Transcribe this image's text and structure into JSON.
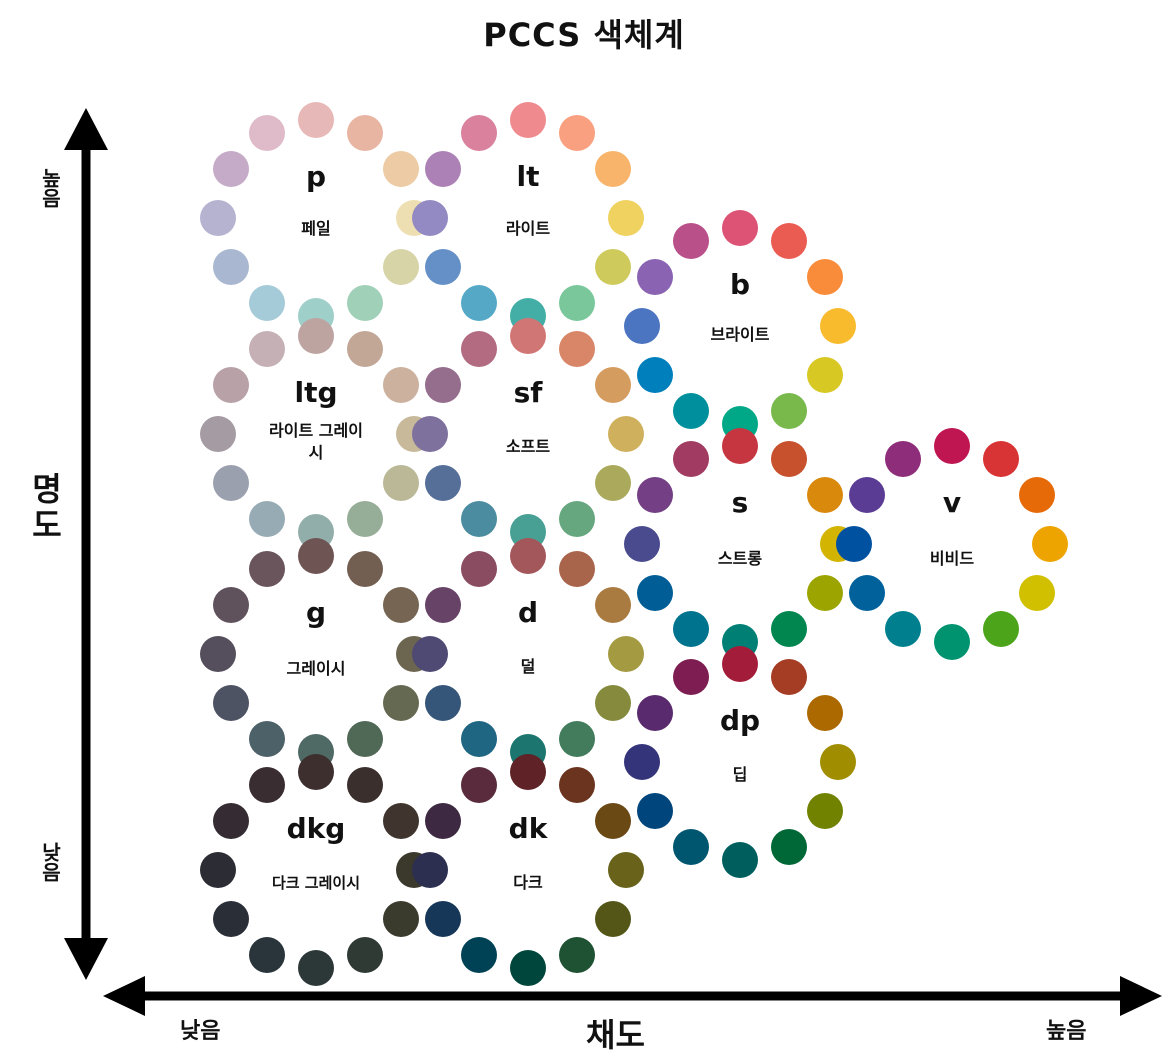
{
  "title": "PCCS 색체계",
  "axes": {
    "brightness": {
      "label": "명도",
      "high": "높음",
      "low": "낮음"
    },
    "saturation": {
      "label": "채도",
      "low": "낮음",
      "high": "높음"
    }
  },
  "tones": [
    {
      "id": "p",
      "abbr": "p",
      "name": "페일",
      "colors": [
        "#e7b8b8",
        "#e9b5a3",
        "#edcba4",
        "#eddfb2",
        "#d7d4a8",
        "#a1d0b8",
        "#9fcfc9",
        "#a5cad8",
        "#a9b7d1",
        "#b5b3d0",
        "#c5abc8",
        "#dfbac8"
      ]
    },
    {
      "id": "lt",
      "abbr": "lt",
      "name": "라이트",
      "colors": [
        "#ef8a8f",
        "#f8a07f",
        "#f7b46a",
        "#efd25f",
        "#cfca5c",
        "#79c79b",
        "#43aea6",
        "#55a9c6",
        "#6490c7",
        "#948ac3",
        "#ac81b6",
        "#d9819d"
      ]
    },
    {
      "id": "b",
      "abbr": "b",
      "name": "브라이트",
      "colors": [
        "#dc5376",
        "#ea5b52",
        "#f88c3a",
        "#f9bb2e",
        "#d8c823",
        "#79b84a",
        "#00a887",
        "#00909d",
        "#007fbd",
        "#4b75c0",
        "#8a63b2",
        "#b9508a"
      ]
    },
    {
      "id": "ltg",
      "abbr": "ltg",
      "name": "라이트 그레이시",
      "colors": [
        "#bda4a0",
        "#c2a696",
        "#ccb29e",
        "#c7b99a",
        "#bab897",
        "#96ad98",
        "#92aeaa",
        "#97abb4",
        "#9ba0ae",
        "#a49ba3",
        "#b8a2a8",
        "#c5b0b5"
      ]
    },
    {
      "id": "sf",
      "abbr": "sf",
      "name": "소프트",
      "colors": [
        "#d07776",
        "#d88667",
        "#d59c5f",
        "#cfb05c",
        "#abaa5c",
        "#67a780",
        "#47a093",
        "#4c8ca0",
        "#566f98",
        "#7e719e",
        "#956d8d",
        "#b26b80"
      ]
    },
    {
      "id": "s",
      "abbr": "s",
      "name": "스트롱",
      "colors": [
        "#c53641",
        "#c6512c",
        "#d98a0d",
        "#d3b400",
        "#9ca500",
        "#00864e",
        "#007f75",
        "#00738f",
        "#005d95",
        "#4a4b8f",
        "#743f84",
        "#a13b62"
      ]
    },
    {
      "id": "v",
      "abbr": "v",
      "name": "비비드",
      "colors": [
        "#bf1651",
        "#d93435",
        "#e66b08",
        "#eda400",
        "#d0c000",
        "#4ba41a",
        "#00936f",
        "#00808f",
        "#00619b",
        "#0052a1",
        "#5b3c95",
        "#8e2d79"
      ]
    },
    {
      "id": "g",
      "abbr": "g",
      "name": "그레이시",
      "colors": [
        "#6e5553",
        "#735f51",
        "#756552",
        "#6c6651",
        "#666952",
        "#506856",
        "#4f6965",
        "#4d6169",
        "#4d5363",
        "#554e5d",
        "#60525c",
        "#69555b"
      ]
    },
    {
      "id": "d",
      "abbr": "d",
      "name": "덜",
      "colors": [
        "#a4575a",
        "#a9654b",
        "#aa7b40",
        "#a49a42",
        "#858a3d",
        "#427c5c",
        "#1d756f",
        "#1e6682",
        "#365679",
        "#4f4a74",
        "#674467",
        "#8a4c60"
      ]
    },
    {
      "id": "dp",
      "abbr": "dp",
      "name": "딥",
      "colors": [
        "#a31d3b",
        "#a53c24",
        "#ab6900",
        "#a08e00",
        "#718200",
        "#006837",
        "#005f5d",
        "#00566f",
        "#00457b",
        "#34347a",
        "#5a2a6e",
        "#7e1d51"
      ]
    },
    {
      "id": "dkg",
      "abbr": "dkg",
      "name": "다크 그레이시",
      "colors": [
        "#3e2f2f",
        "#3a2f2c",
        "#3f352e",
        "#3b382c",
        "#3a3a2d",
        "#2f3a34",
        "#2c3837",
        "#29353b",
        "#2a2e37",
        "#2c2c34",
        "#342c32",
        "#3a2d31"
      ]
    },
    {
      "id": "dk",
      "abbr": "dk",
      "name": "다크",
      "colors": [
        "#5e2227",
        "#6b341f",
        "#6a4915",
        "#68621a",
        "#545618",
        "#1e5233",
        "#00463c",
        "#004255",
        "#163758",
        "#2d2f51",
        "#3e2942",
        "#592b3c"
      ]
    }
  ]
}
